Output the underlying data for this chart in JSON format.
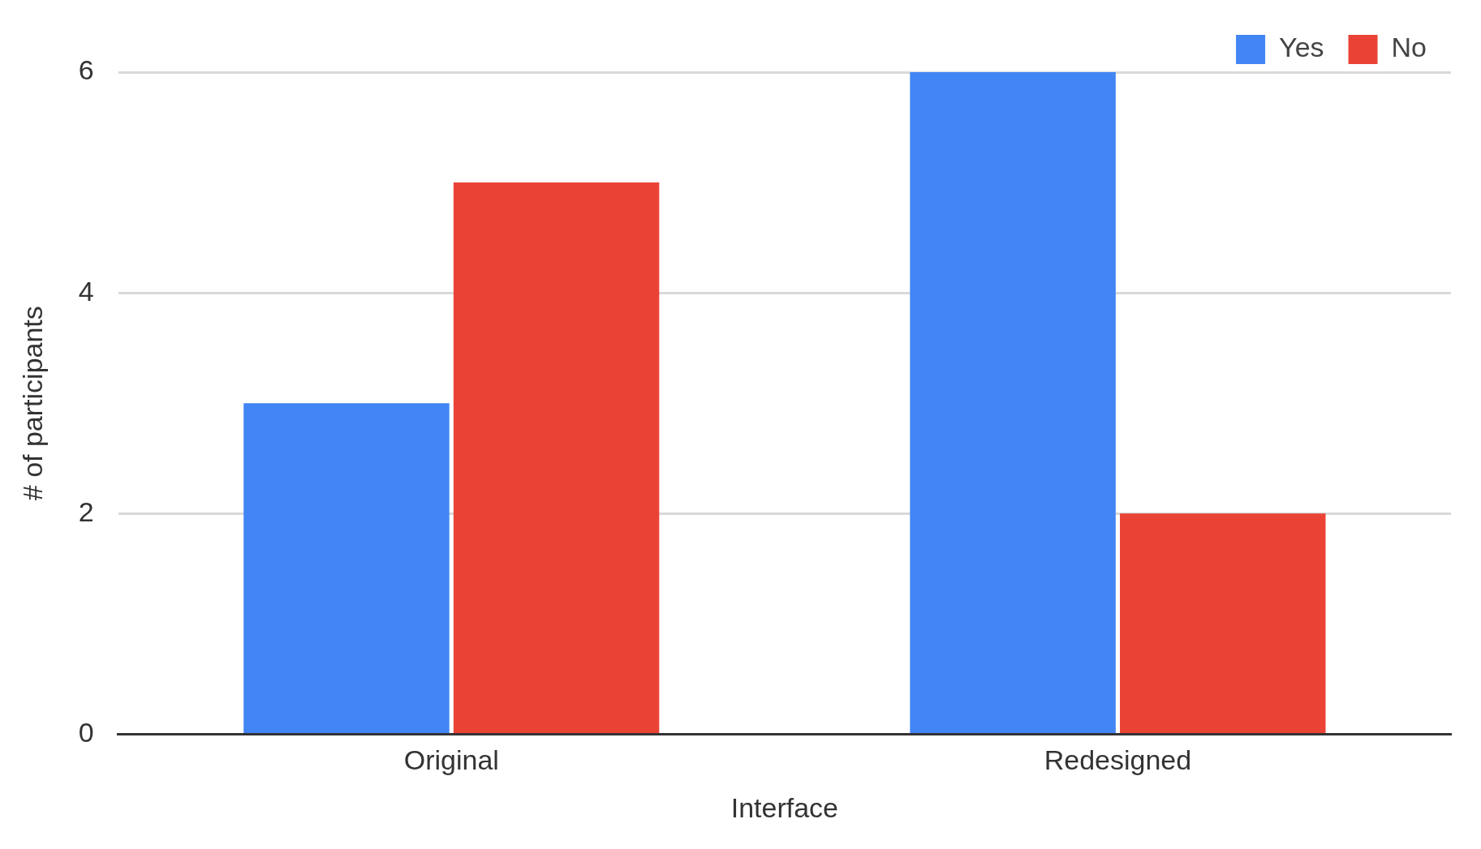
{
  "chart_data": {
    "type": "bar",
    "xlabel": "Interface",
    "ylabel": "# of participants",
    "categories": [
      "Original",
      "Redesigned"
    ],
    "series": [
      {
        "name": "Yes",
        "color": "#4285f4",
        "values": [
          3,
          6
        ]
      },
      {
        "name": "No",
        "color": "#ea4335",
        "values": [
          5,
          2
        ]
      }
    ],
    "ylim": [
      0,
      6
    ],
    "yticks": [
      0,
      2,
      4,
      6
    ],
    "grid": "y",
    "legend": "top right"
  }
}
